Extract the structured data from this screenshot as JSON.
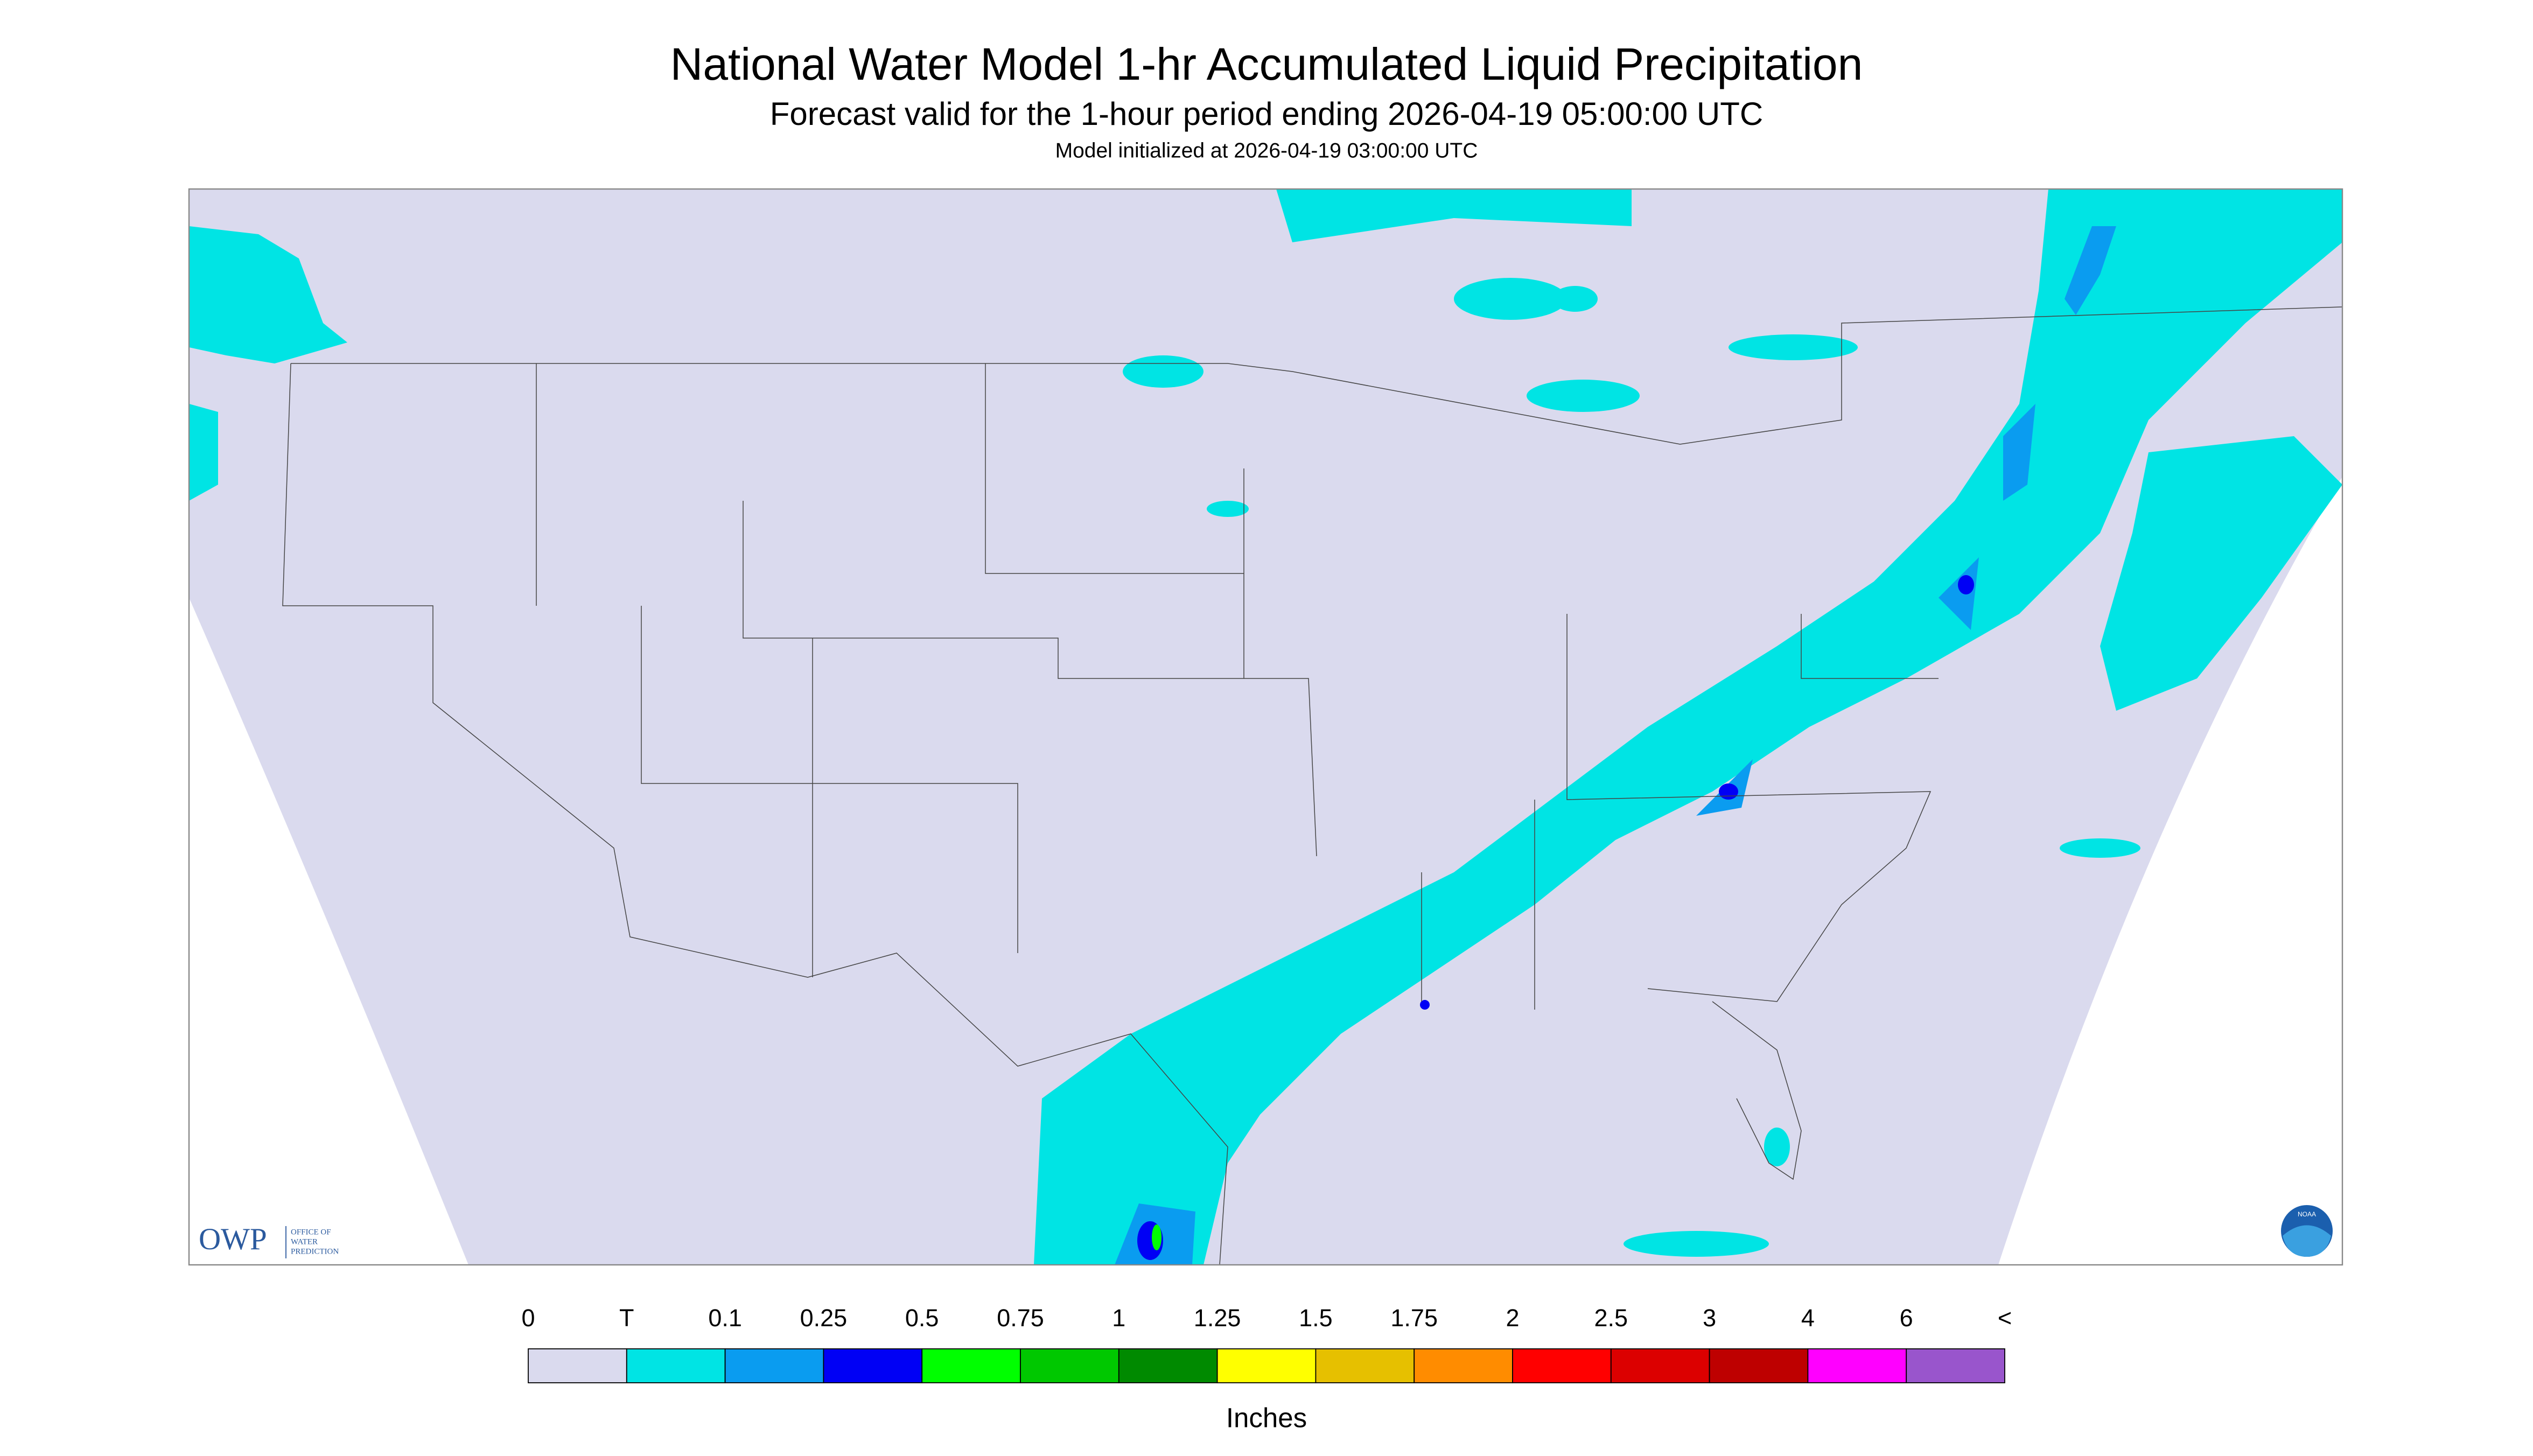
{
  "header": {
    "title": "National Water Model 1-hr Accumulated Liquid Precipitation",
    "subtitle": "Forecast valid for the 1-hour period ending 2026-04-19 05:00:00 UTC",
    "initialized": "Model initialized at 2026-04-19 03:00:00 UTC"
  },
  "legend": {
    "labels": [
      "0",
      "T",
      "0.1",
      "0.25",
      "0.5",
      "0.75",
      "1",
      "1.25",
      "1.5",
      "1.75",
      "2",
      "2.5",
      "3",
      "4",
      "6",
      "<"
    ],
    "colors": [
      "#dadaee",
      "#00e4e4",
      "#0a9cf0",
      "#0000f5",
      "#00ff00",
      "#00c800",
      "#008a00",
      "#ffff00",
      "#e6c000",
      "#ff8c00",
      "#ff0000",
      "#dc0000",
      "#be0000",
      "#ff00ff",
      "#9955cc"
    ],
    "units": "Inches"
  },
  "logos": {
    "owp": "OWP",
    "owp_name": [
      "OFFICE OF",
      "WATER",
      "PREDICTION"
    ],
    "noaa": "NOAA"
  }
}
